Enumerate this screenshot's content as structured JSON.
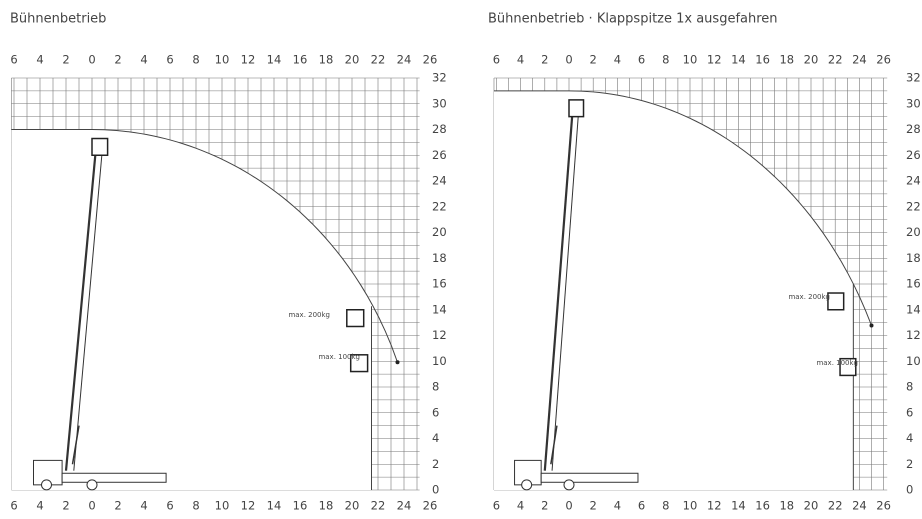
{
  "panels": [
    {
      "title": "Bühnenbetrieb",
      "x_labels": [
        6,
        4,
        2,
        0,
        2,
        4,
        6,
        8,
        10,
        12,
        14,
        16,
        18,
        20,
        22,
        24,
        26
      ],
      "y_labels": [
        32,
        30,
        28,
        26,
        24,
        22,
        20,
        18,
        16,
        14,
        12,
        10,
        8,
        6,
        4,
        2,
        0
      ],
      "annotations": [
        "max. 200kg",
        "max. 100kg"
      ]
    },
    {
      "title": "Bühnenbetrieb · Klappspitze 1x ausgefahren",
      "x_labels": [
        6,
        4,
        2,
        0,
        2,
        4,
        6,
        8,
        10,
        12,
        14,
        16,
        18,
        20,
        22,
        24,
        26
      ],
      "y_labels": [
        32,
        30,
        28,
        26,
        24,
        22,
        20,
        18,
        16,
        14,
        12,
        10,
        8,
        6,
        4,
        2,
        0
      ],
      "annotations": [
        "max. 200kg",
        "max. 100kg"
      ]
    }
  ]
}
